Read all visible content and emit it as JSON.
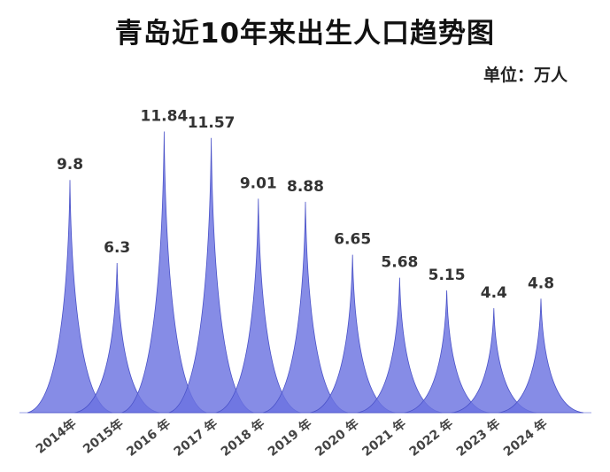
{
  "chart_data": {
    "type": "area",
    "title": "青岛近10年来出生人口趋势图",
    "unit_label": "单位：万人",
    "categories": [
      "2014年",
      "2015年",
      "2016 年",
      "2017 年",
      "2018 年",
      "2019 年",
      "2020 年",
      "2021 年",
      "2022 年",
      "2023 年",
      "2024 年"
    ],
    "values": [
      9.8,
      6.3,
      11.84,
      11.57,
      9.01,
      8.88,
      6.65,
      5.68,
      5.15,
      4.4,
      4.8
    ],
    "value_labels": [
      "9.8",
      "6.3",
      "11.84",
      "11.57",
      "9.01",
      "8.88",
      "6.65",
      "5.68",
      "5.15",
      "4.4",
      "4.8"
    ],
    "ylim": [
      0,
      13.5
    ],
    "colors": {
      "fill": "#6b73e0",
      "edge": "#4a52c8"
    }
  }
}
